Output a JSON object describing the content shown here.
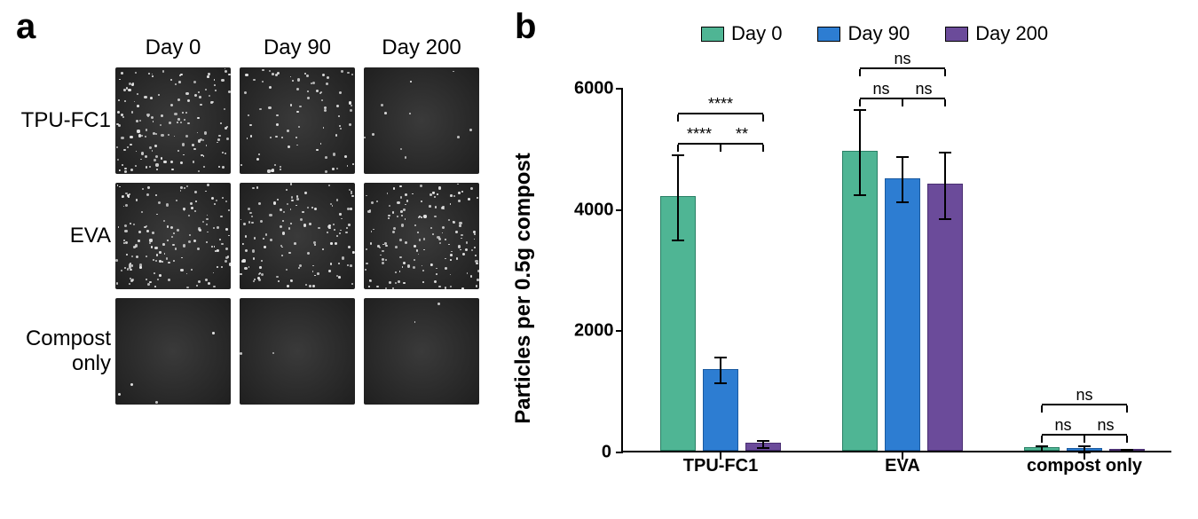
{
  "panelA": {
    "label": "a",
    "label_fontsize": 40,
    "col_headers": [
      "Day 0",
      "Day 90",
      "Day 200"
    ],
    "row_labels": [
      "TPU-FC1",
      "EVA",
      "Compost only"
    ],
    "label_fontsize_axis": 24,
    "micrograph_bg_outer": "#3a3a3a",
    "micrograph_bg_inner": "#1f1f1f",
    "particle_color": "#e8e8e8",
    "density_matrix": [
      [
        0.8,
        0.45,
        0.06
      ],
      [
        0.85,
        0.7,
        0.85
      ],
      [
        0.02,
        0.01,
        0.01
      ]
    ]
  },
  "panelB": {
    "label": "b",
    "label_fontsize": 40,
    "legend": [
      {
        "label": "Day 0",
        "color": "#4fb594"
      },
      {
        "label": "Day 90",
        "color": "#2d7dd2"
      },
      {
        "label": "Day 200",
        "color": "#6b4b9a"
      }
    ],
    "legend_fontsize": 22,
    "y_axis_label": "Particles per 0.5g compost",
    "y_axis_label_fontsize": 24,
    "ylim": [
      0,
      6000
    ],
    "yticks": [
      0,
      2000,
      4000,
      6000
    ],
    "tick_fontsize": 20,
    "group_label_fontsize": 20,
    "sig_fontsize": 18,
    "groups": [
      {
        "name": "TPU-FC1",
        "bars": [
          {
            "mean": 4200,
            "err": 700,
            "color": "#4fb594"
          },
          {
            "mean": 1350,
            "err": 210,
            "color": "#2d7dd2"
          },
          {
            "mean": 130,
            "err": 60,
            "color": "#6b4b9a"
          }
        ],
        "sigs": [
          {
            "pairs": [
              0,
              1
            ],
            "label": "****",
            "level": 1
          },
          {
            "pairs": [
              1,
              2
            ],
            "label": "**",
            "level": 1
          },
          {
            "pairs": [
              0,
              2
            ],
            "label": "****",
            "level": 2
          }
        ]
      },
      {
        "name": "EVA",
        "bars": [
          {
            "mean": 4950,
            "err": 700,
            "color": "#4fb594"
          },
          {
            "mean": 4500,
            "err": 380,
            "color": "#2d7dd2"
          },
          {
            "mean": 4400,
            "err": 550,
            "color": "#6b4b9a"
          }
        ],
        "sigs": [
          {
            "pairs": [
              0,
              1
            ],
            "label": "ns",
            "level": 1
          },
          {
            "pairs": [
              1,
              2
            ],
            "label": "ns",
            "level": 1
          },
          {
            "pairs": [
              0,
              2
            ],
            "label": "ns",
            "level": 2
          }
        ]
      },
      {
        "name": "compost only",
        "bars": [
          {
            "mean": 60,
            "err": 40,
            "color": "#4fb594"
          },
          {
            "mean": 50,
            "err": 50,
            "color": "#2d7dd2"
          },
          {
            "mean": 30,
            "err": 20,
            "color": "#6b4b9a"
          }
        ],
        "sigs": [
          {
            "pairs": [
              0,
              1
            ],
            "label": "ns",
            "level": 1
          },
          {
            "pairs": [
              1,
              2
            ],
            "label": "ns",
            "level": 1
          },
          {
            "pairs": [
              0,
              2
            ],
            "label": "ns",
            "level": 2
          }
        ]
      }
    ]
  }
}
